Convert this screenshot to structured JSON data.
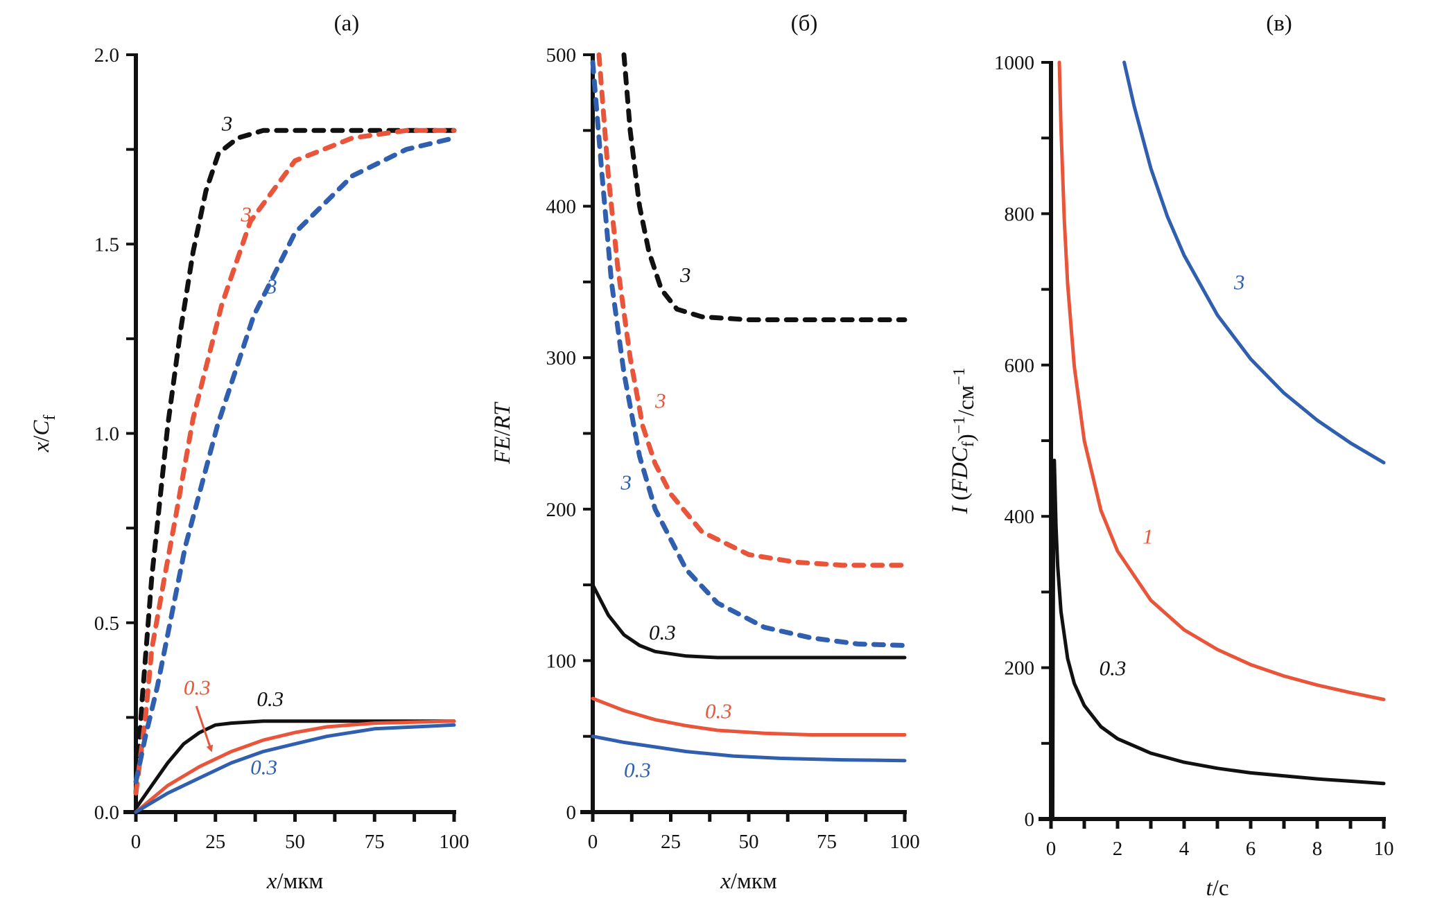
{
  "colors": {
    "black": "#111111",
    "red": "#e8553a",
    "blue": "#2f5fae"
  },
  "chart_data": [
    {
      "type": "line",
      "title": "(а)",
      "xlabel": {
        "italic": "x",
        "rest": "/мкм"
      },
      "ylabel": {
        "italic": "x",
        "rest": "/",
        "italic2": "C",
        "sub": "f",
        "sup": ""
      },
      "xlim": [
        0,
        100
      ],
      "ylim": [
        0,
        2.0
      ],
      "xticks": [
        "0",
        "25",
        "50",
        "75",
        "100"
      ],
      "xtick_values": [
        0,
        25,
        50,
        75,
        100
      ],
      "xminor": 12.5,
      "yticks": [
        "0.0",
        "0.5",
        "1.0",
        "1.5",
        "2.0"
      ],
      "ytick_values": [
        0,
        0.5,
        1.0,
        1.5,
        2.0
      ],
      "yminor": 0.25,
      "series": [
        {
          "color": "black",
          "dashed": true,
          "points": [
            [
              0,
              0.05
            ],
            [
              2,
              0.3
            ],
            [
              5,
              0.62
            ],
            [
              10,
              1.02
            ],
            [
              14,
              1.27
            ],
            [
              18,
              1.48
            ],
            [
              22,
              1.64
            ],
            [
              26,
              1.74
            ],
            [
              32,
              1.78
            ],
            [
              40,
              1.8
            ],
            [
              100,
              1.8
            ]
          ]
        },
        {
          "color": "red",
          "dashed": true,
          "points": [
            [
              0,
              0.05
            ],
            [
              3,
              0.25
            ],
            [
              5,
              0.43
            ],
            [
              9,
              0.62
            ],
            [
              12.5,
              0.78
            ],
            [
              18,
              1.04
            ],
            [
              27,
              1.34
            ],
            [
              36,
              1.56
            ],
            [
              50,
              1.72
            ],
            [
              68,
              1.78
            ],
            [
              85,
              1.8
            ],
            [
              100,
              1.8
            ]
          ]
        },
        {
          "color": "blue",
          "dashed": true,
          "points": [
            [
              0,
              0.08
            ],
            [
              3,
              0.2
            ],
            [
              6.7,
              0.33
            ],
            [
              15.5,
              0.7
            ],
            [
              25.6,
              1.02
            ],
            [
              37,
              1.31
            ],
            [
              50,
              1.53
            ],
            [
              68,
              1.68
            ],
            [
              85,
              1.75
            ],
            [
              100,
              1.78
            ]
          ]
        },
        {
          "color": "black",
          "dashed": false,
          "points": [
            [
              0,
              0.01
            ],
            [
              5,
              0.07
            ],
            [
              10,
              0.13
            ],
            [
              15,
              0.18
            ],
            [
              20,
              0.21
            ],
            [
              25,
              0.23
            ],
            [
              30,
              0.235
            ],
            [
              40,
              0.24
            ],
            [
              100,
              0.24
            ]
          ]
        },
        {
          "color": "red",
          "dashed": false,
          "points": [
            [
              0,
              0
            ],
            [
              10,
              0.07
            ],
            [
              20,
              0.12
            ],
            [
              30,
              0.16
            ],
            [
              40,
              0.19
            ],
            [
              50,
              0.21
            ],
            [
              60,
              0.225
            ],
            [
              75,
              0.235
            ],
            [
              100,
              0.24
            ]
          ]
        },
        {
          "color": "blue",
          "dashed": false,
          "points": [
            [
              0,
              0
            ],
            [
              10,
              0.05
            ],
            [
              20,
              0.09
            ],
            [
              30,
              0.13
            ],
            [
              40,
              0.16
            ],
            [
              50,
              0.18
            ],
            [
              60,
              0.2
            ],
            [
              75,
              0.22
            ],
            [
              100,
              0.23
            ]
          ]
        }
      ],
      "annotations": [
        {
          "text": "3",
          "color": "black",
          "x": 27,
          "y": 1.8
        },
        {
          "text": "3",
          "color": "red",
          "x": 33,
          "y": 1.56
        },
        {
          "text": "3",
          "color": "blue",
          "x": 41,
          "y": 1.37
        },
        {
          "text": "0.3",
          "color": "red",
          "x": 15,
          "y": 0.31
        },
        {
          "text": "0.3",
          "color": "black",
          "x": 38,
          "y": 0.28
        },
        {
          "text": "0.3",
          "color": "blue",
          "x": 36,
          "y": 0.1
        }
      ],
      "arrows": [
        {
          "color": "red",
          "from": [
            19,
            0.28
          ],
          "to": [
            23.6,
            0.165
          ]
        }
      ]
    },
    {
      "type": "line",
      "title": "(б)",
      "xlabel": {
        "italic": "x",
        "rest": "/мкм"
      },
      "ylabel": {
        "italic": "FE",
        "rest": "/",
        "italic2": "RT",
        "sub": "",
        "sup": ""
      },
      "xlim": [
        0,
        100
      ],
      "ylim": [
        0,
        500
      ],
      "xticks": [
        "0",
        "25",
        "50",
        "75",
        "100"
      ],
      "xtick_values": [
        0,
        25,
        50,
        75,
        100
      ],
      "xminor": 12.5,
      "yticks": [
        "0",
        "100",
        "200",
        "300",
        "400",
        "500"
      ],
      "ytick_values": [
        0,
        100,
        200,
        300,
        400,
        500
      ],
      "yminor": 50,
      "series": [
        {
          "color": "black",
          "dashed": true,
          "points": [
            [
              10,
              500
            ],
            [
              12,
              450
            ],
            [
              15,
              400
            ],
            [
              18,
              370
            ],
            [
              22,
              345
            ],
            [
              27,
              332
            ],
            [
              35,
              327
            ],
            [
              50,
              325
            ],
            [
              100,
              325
            ]
          ]
        },
        {
          "color": "red",
          "dashed": true,
          "points": [
            [
              2,
              500
            ],
            [
              5,
              420
            ],
            [
              8,
              360
            ],
            [
              12,
              300
            ],
            [
              16,
              255
            ],
            [
              20,
              230
            ],
            [
              25,
              210
            ],
            [
              35,
              185
            ],
            [
              50,
              170
            ],
            [
              65,
              165
            ],
            [
              80,
              163
            ],
            [
              100,
              163
            ]
          ]
        },
        {
          "color": "blue",
          "dashed": true,
          "points": [
            [
              0,
              495
            ],
            [
              3,
              420
            ],
            [
              6,
              350
            ],
            [
              10,
              290
            ],
            [
              15,
              235
            ],
            [
              20,
              200
            ],
            [
              30,
              160
            ],
            [
              40,
              138
            ],
            [
              55,
              122
            ],
            [
              70,
              115
            ],
            [
              85,
              111
            ],
            [
              100,
              110
            ]
          ]
        },
        {
          "color": "black",
          "dashed": false,
          "points": [
            [
              0,
              150
            ],
            [
              5,
              130
            ],
            [
              10,
              117
            ],
            [
              15,
              110
            ],
            [
              20,
              106
            ],
            [
              30,
              103
            ],
            [
              40,
              102
            ],
            [
              100,
              102
            ]
          ]
        },
        {
          "color": "red",
          "dashed": false,
          "points": [
            [
              0,
              75
            ],
            [
              10,
              67
            ],
            [
              20,
              61
            ],
            [
              30,
              57
            ],
            [
              40,
              54
            ],
            [
              55,
              52
            ],
            [
              70,
              51
            ],
            [
              100,
              51
            ]
          ]
        },
        {
          "color": "blue",
          "dashed": false,
          "points": [
            [
              0,
              50
            ],
            [
              10,
              46
            ],
            [
              20,
              43
            ],
            [
              30,
              40
            ],
            [
              45,
              37
            ],
            [
              60,
              35.5
            ],
            [
              80,
              34.5
            ],
            [
              100,
              34
            ]
          ]
        }
      ],
      "annotations": [
        {
          "text": "3",
          "color": "black",
          "x": 28,
          "y": 350
        },
        {
          "text": "3",
          "color": "red",
          "x": 20,
          "y": 267
        },
        {
          "text": "3",
          "color": "blue",
          "x": 9,
          "y": 213
        },
        {
          "text": "0.3",
          "color": "black",
          "x": 18,
          "y": 114
        },
        {
          "text": "0.3",
          "color": "red",
          "x": 36,
          "y": 62
        },
        {
          "text": "0.3",
          "color": "blue",
          "x": 10,
          "y": 23
        }
      ],
      "arrows": []
    },
    {
      "type": "line",
      "title": "(в)",
      "xlabel": {
        "italic": "t",
        "rest": "/с"
      },
      "ylabel": {
        "italic": "I",
        "rest": " (",
        "italic2": "FDC",
        "sub": "f",
        "sup": "−1",
        "tail": ")",
        "unit": "/см",
        "unitsup": "−1"
      },
      "xlim": [
        0,
        10
      ],
      "ylim": [
        0,
        1000
      ],
      "xticks": [
        "0",
        "2",
        "4",
        "6",
        "8",
        "10"
      ],
      "xtick_values": [
        0,
        2,
        4,
        6,
        8,
        10
      ],
      "xminor": 1,
      "yticks": [
        "0",
        "200",
        "400",
        "600",
        "800",
        "1000"
      ],
      "ytick_values": [
        0,
        200,
        400,
        600,
        800,
        1000
      ],
      "yminor": 100,
      "series": [
        {
          "color": "blue",
          "dashed": false,
          "points": [
            [
              2.2,
              1005
            ],
            [
              2.5,
              942
            ],
            [
              3,
              860
            ],
            [
              3.5,
              796
            ],
            [
              4,
              745
            ],
            [
              5,
              666
            ],
            [
              6,
              608
            ],
            [
              7,
              563
            ],
            [
              8,
              527
            ],
            [
              9,
              497
            ],
            [
              10,
              471
            ]
          ]
        },
        {
          "color": "red",
          "dashed": false,
          "points": [
            [
              0.25,
              1000
            ],
            [
              0.3,
              913
            ],
            [
              0.4,
              791
            ],
            [
              0.5,
              707
            ],
            [
              0.7,
              598
            ],
            [
              1,
              500
            ],
            [
              1.5,
              408
            ],
            [
              2,
              354
            ],
            [
              3,
              289
            ],
            [
              4,
              250
            ],
            [
              5,
              224
            ],
            [
              6,
              204
            ],
            [
              7,
              189
            ],
            [
              8,
              177
            ],
            [
              9,
              167
            ],
            [
              10,
              158
            ]
          ]
        },
        {
          "color": "black",
          "dashed": false,
          "points": [
            [
              0.05,
              0
            ],
            [
              0.08,
              440
            ],
            [
              0.1,
              474
            ],
            [
              0.15,
              387
            ],
            [
              0.2,
              335
            ],
            [
              0.3,
              274
            ],
            [
              0.5,
              212
            ],
            [
              0.7,
              179
            ],
            [
              1,
              150
            ],
            [
              1.5,
              122
            ],
            [
              2,
              106
            ],
            [
              3,
              87
            ],
            [
              4,
              75
            ],
            [
              5,
              67
            ],
            [
              6,
              61
            ],
            [
              7,
              57
            ],
            [
              8,
              53
            ],
            [
              9,
              50
            ],
            [
              10,
              47
            ]
          ]
        }
      ],
      "annotations": [
        {
          "text": "3",
          "color": "blue",
          "x": 5.5,
          "y": 700
        },
        {
          "text": "1",
          "color": "red",
          "x": 2.75,
          "y": 364
        },
        {
          "text": "0.3",
          "color": "black",
          "x": 1.45,
          "y": 190
        }
      ],
      "arrows": []
    }
  ]
}
